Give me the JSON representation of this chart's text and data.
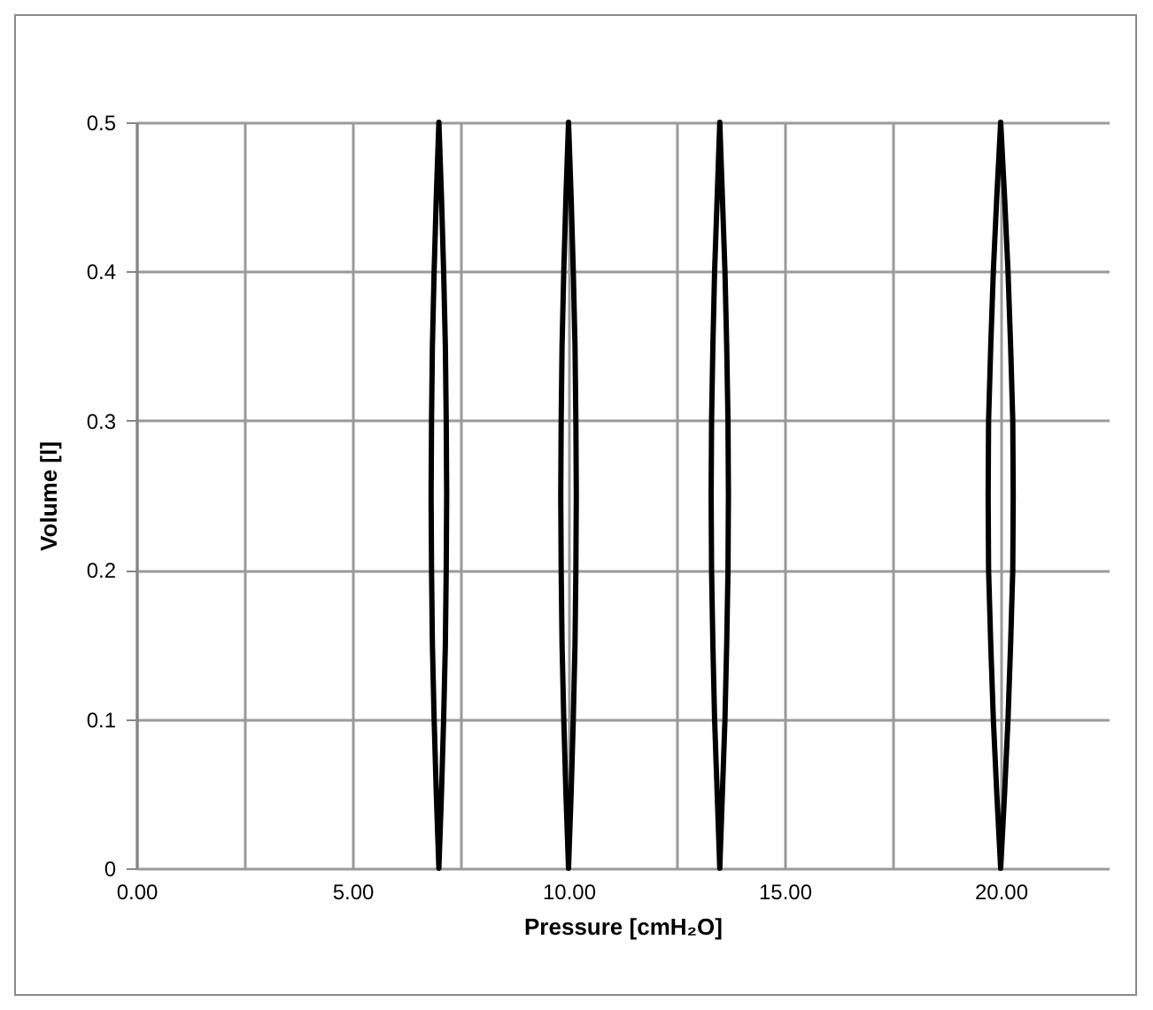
{
  "chart_data": {
    "type": "line",
    "xlabel": "Pressure [cmH₂O]",
    "ylabel": "Volume  [l]",
    "xlim": [
      0,
      22.5
    ],
    "ylim": [
      0,
      0.5
    ],
    "xticks": [
      {
        "value": 0,
        "label": "0.00"
      },
      {
        "value": 2.5,
        "label": null
      },
      {
        "value": 5,
        "label": "5.00"
      },
      {
        "value": 7.5,
        "label": null
      },
      {
        "value": 10,
        "label": "10.00"
      },
      {
        "value": 12.5,
        "label": null
      },
      {
        "value": 15,
        "label": "15.00"
      },
      {
        "value": 17.5,
        "label": null
      },
      {
        "value": 20,
        "label": "20.00"
      }
    ],
    "yticks": [
      0,
      0.1,
      0.2,
      0.3,
      0.4,
      0.5
    ],
    "grid": true,
    "marker": "none",
    "line_style": "solid",
    "series": [
      {
        "color": "#000000",
        "x": [
          6.82,
          6.83,
          6.85,
          6.89,
          6.94,
          7,
          7.06,
          7.11,
          7.15,
          7.17,
          7.18,
          null,
          6.82,
          6.83,
          6.85,
          6.89,
          6.94,
          7,
          7.06,
          7.11,
          7.15,
          7.17,
          7.18
        ],
        "values": [
          0.25,
          0.2,
          0.15,
          0.1,
          0.05,
          0,
          0.05,
          0.1,
          0.15,
          0.2,
          0.25,
          null,
          0.25,
          0.3,
          0.35,
          0.4,
          0.45,
          0.5,
          0.45,
          0.4,
          0.35,
          0.3,
          0.25
        ]
      },
      {
        "color": "#000000",
        "x": [
          9.82,
          9.83,
          9.85,
          9.89,
          9.94,
          10,
          10.06,
          10.11,
          10.15,
          10.17,
          10.18,
          null,
          9.82,
          9.83,
          9.85,
          9.89,
          9.94,
          10,
          10.06,
          10.11,
          10.15,
          10.17,
          10.18
        ],
        "values": [
          0.25,
          0.2,
          0.15,
          0.1,
          0.05,
          0,
          0.05,
          0.1,
          0.15,
          0.2,
          0.25,
          null,
          0.25,
          0.3,
          0.35,
          0.4,
          0.45,
          0.5,
          0.45,
          0.4,
          0.35,
          0.3,
          0.25
        ]
      },
      {
        "color": "#000000",
        "x": [
          13.3,
          13.31,
          13.34,
          13.38,
          13.44,
          13.5,
          13.56,
          13.62,
          13.66,
          13.69,
          13.7,
          null,
          13.3,
          13.31,
          13.34,
          13.38,
          13.44,
          13.5,
          13.56,
          13.62,
          13.66,
          13.69,
          13.7
        ],
        "values": [
          0.25,
          0.2,
          0.15,
          0.1,
          0.05,
          0,
          0.05,
          0.1,
          0.15,
          0.2,
          0.25,
          null,
          0.25,
          0.3,
          0.35,
          0.4,
          0.45,
          0.5,
          0.45,
          0.4,
          0.35,
          0.3,
          0.25
        ]
      },
      {
        "color": "#000000",
        "x": [
          19.71,
          19.72,
          19.77,
          19.83,
          19.91,
          20,
          20.09,
          20.17,
          20.23,
          20.28,
          20.29,
          null,
          19.71,
          19.72,
          19.77,
          19.83,
          19.91,
          20,
          20.09,
          20.17,
          20.23,
          20.28,
          20.29
        ],
        "values": [
          0.25,
          0.2,
          0.15,
          0.1,
          0.05,
          0,
          0.05,
          0.1,
          0.15,
          0.2,
          0.25,
          null,
          0.25,
          0.3,
          0.35,
          0.4,
          0.45,
          0.5,
          0.45,
          0.4,
          0.35,
          0.3,
          0.25
        ]
      }
    ]
  }
}
